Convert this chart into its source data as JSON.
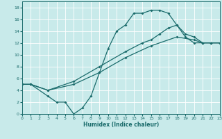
{
  "xlabel": "Humidex (Indice chaleur)",
  "xlim": [
    0,
    23
  ],
  "ylim": [
    0,
    19
  ],
  "xticks": [
    0,
    1,
    2,
    3,
    4,
    5,
    6,
    7,
    8,
    9,
    10,
    11,
    12,
    13,
    14,
    15,
    16,
    17,
    18,
    19,
    20,
    21,
    22,
    23
  ],
  "yticks": [
    0,
    2,
    4,
    6,
    8,
    10,
    12,
    14,
    16,
    18
  ],
  "bg_color": "#c8eaea",
  "line_color": "#1a6b6b",
  "grid_color": "#ffffff",
  "curve1_x": [
    0,
    1,
    3,
    4,
    5,
    6,
    7,
    8,
    9,
    10,
    11,
    12,
    13,
    14,
    15,
    16,
    17,
    18,
    19,
    20,
    21,
    22,
    23
  ],
  "curve1_y": [
    5,
    5,
    3,
    2,
    2,
    0,
    1,
    3,
    7,
    11,
    14,
    15,
    17,
    17,
    17.5,
    17.5,
    17,
    15,
    13,
    12,
    12,
    12,
    12
  ],
  "curve2_x": [
    0,
    1,
    3,
    6,
    9,
    12,
    14,
    15,
    16,
    17,
    18,
    19,
    20,
    21,
    22,
    23
  ],
  "curve2_y": [
    5,
    5,
    4,
    5.5,
    8,
    10.5,
    12,
    12.5,
    13.5,
    14.5,
    15,
    13.5,
    13,
    12,
    12,
    12
  ],
  "curve3_x": [
    0,
    1,
    3,
    6,
    9,
    12,
    15,
    18,
    20,
    21,
    22,
    23
  ],
  "curve3_y": [
    5,
    5,
    4,
    5,
    7,
    9.5,
    11.5,
    13,
    12.5,
    12,
    12,
    12
  ]
}
